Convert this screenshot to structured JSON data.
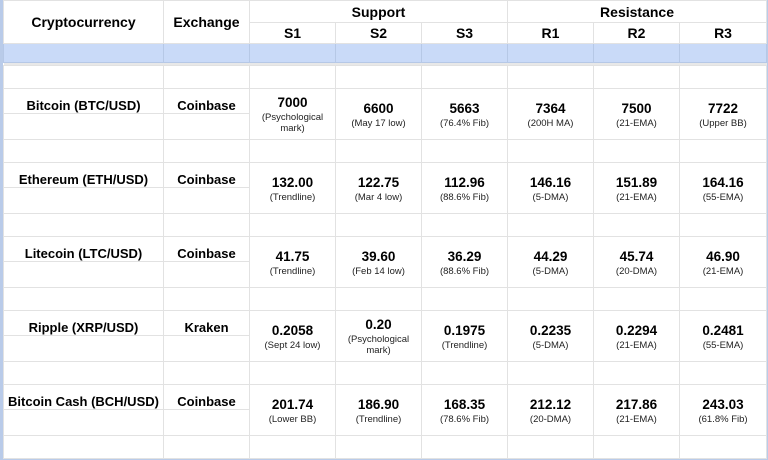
{
  "headers": {
    "crypto": "Cryptocurrency",
    "exchange": "Exchange",
    "support": "Support",
    "resistance": "Resistance",
    "levels": [
      "S1",
      "S2",
      "S3",
      "R1",
      "R2",
      "R3"
    ]
  },
  "rows": [
    {
      "name": "Bitcoin (BTC/USD)",
      "exchange": "Coinbase",
      "values": [
        {
          "v": "7000",
          "n": "(Psychological mark)"
        },
        {
          "v": "6600",
          "n": "(May 17 low)"
        },
        {
          "v": "5663",
          "n": "(76.4% Fib)"
        },
        {
          "v": "7364",
          "n": "(200H MA)"
        },
        {
          "v": "7500",
          "n": "(21-EMA)"
        },
        {
          "v": "7722",
          "n": "(Upper BB)"
        }
      ]
    },
    {
      "name": "Ethereum (ETH/USD)",
      "exchange": "Coinbase",
      "values": [
        {
          "v": "132.00",
          "n": "(Trendline)"
        },
        {
          "v": "122.75",
          "n": "(Mar 4 low)"
        },
        {
          "v": "112.96",
          "n": "(88.6% Fib)"
        },
        {
          "v": "146.16",
          "n": "(5-DMA)"
        },
        {
          "v": "151.89",
          "n": "(21-EMA)"
        },
        {
          "v": "164.16",
          "n": "(55-EMA)"
        }
      ]
    },
    {
      "name": "Litecoin (LTC/USD)",
      "exchange": "Coinbase",
      "values": [
        {
          "v": "41.75",
          "n": "(Trendline)"
        },
        {
          "v": "39.60",
          "n": "(Feb 14 low)"
        },
        {
          "v": "36.29",
          "n": "(88.6% Fib)"
        },
        {
          "v": "44.29",
          "n": "(5-DMA)"
        },
        {
          "v": "45.74",
          "n": "(20-DMA)"
        },
        {
          "v": "46.90",
          "n": "(21-EMA)"
        }
      ]
    },
    {
      "name": "Ripple (XRP/USD)",
      "exchange": "Kraken",
      "values": [
        {
          "v": "0.2058",
          "n": "(Sept 24 low)"
        },
        {
          "v": "0.20",
          "n": "(Psychological mark)"
        },
        {
          "v": "0.1975",
          "n": "(Trendline)"
        },
        {
          "v": "0.2235",
          "n": "(5-DMA)"
        },
        {
          "v": "0.2294",
          "n": "(21-EMA)"
        },
        {
          "v": "0.2481",
          "n": "(55-EMA)"
        }
      ]
    },
    {
      "name": "Bitcoin Cash (BCH/USD)",
      "exchange": "Coinbase",
      "values": [
        {
          "v": "201.74",
          "n": "(Lower BB)"
        },
        {
          "v": "186.90",
          "n": "(Trendline)"
        },
        {
          "v": "168.35",
          "n": "(78.6% Fib)"
        },
        {
          "v": "212.12",
          "n": "(20-DMA)"
        },
        {
          "v": "217.86",
          "n": "(21-EMA)"
        },
        {
          "v": "243.03",
          "n": "(61.8% Fib)"
        }
      ]
    }
  ]
}
